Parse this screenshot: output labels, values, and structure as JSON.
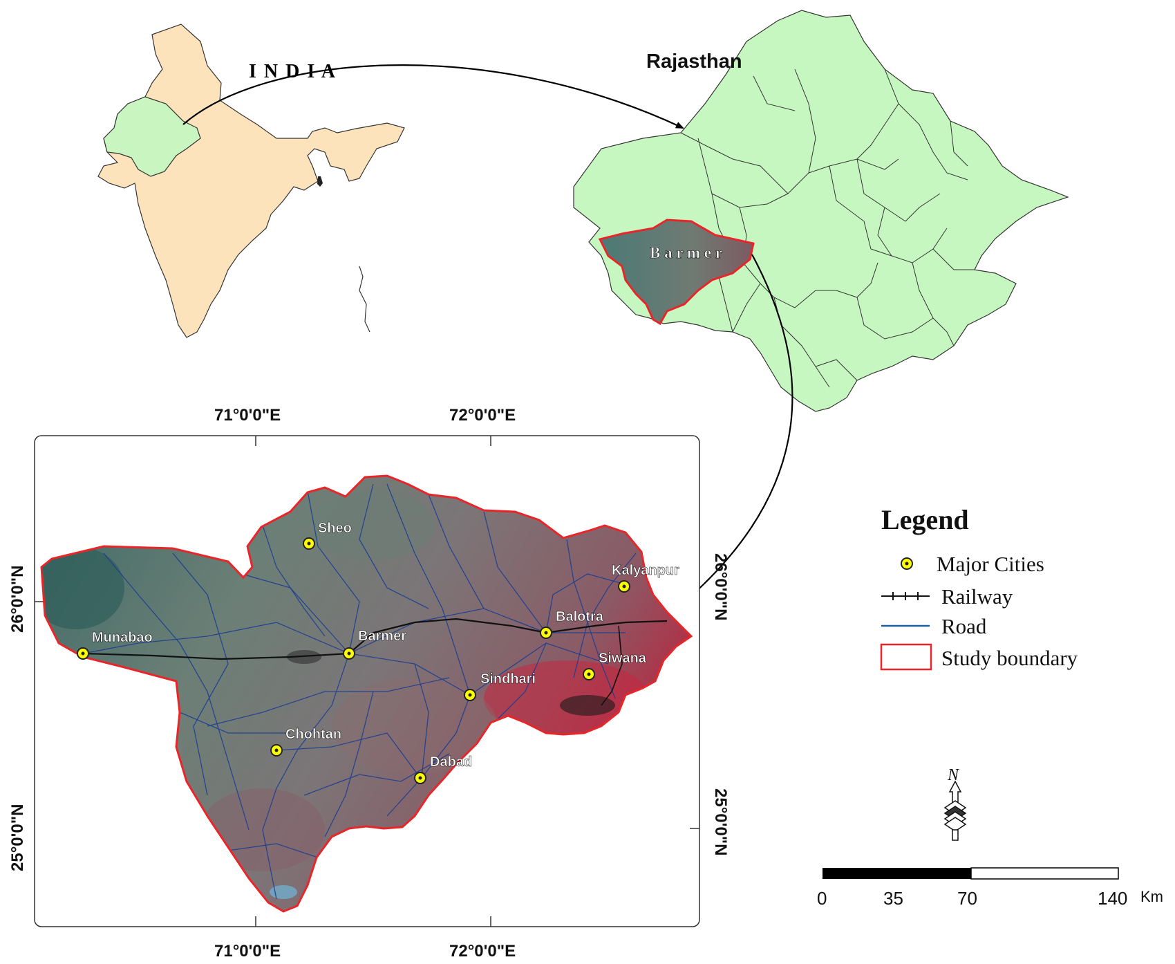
{
  "india": {
    "label": "I N D I A",
    "fill": "#fde3bb",
    "highlight_fill": "#c8f5c0"
  },
  "rajasthan": {
    "label": "Rajasthan",
    "fill": "#c6f7c0",
    "district_label": "B a r m e r"
  },
  "study_map": {
    "top_lon_labels": [
      "71°0'0\"E",
      "72°0'0\"E"
    ],
    "bottom_lon_labels": [
      "71°0'0\"E",
      "72°0'0\"E"
    ],
    "left_lat_labels": [
      "26°0'0\"N",
      "25°0'0\"N"
    ],
    "right_lat_labels": [
      "26°0'0\"N",
      "25°0'0\"N"
    ],
    "cities": [
      {
        "name": "Sheo"
      },
      {
        "name": "Kalyanpur"
      },
      {
        "name": "Balotra"
      },
      {
        "name": "Munabao"
      },
      {
        "name": "Barmer"
      },
      {
        "name": "Siwana"
      },
      {
        "name": "Sindhari"
      },
      {
        "name": "Chohtan"
      },
      {
        "name": "Dabad"
      }
    ],
    "boundary_color": "#e8262a",
    "road_color": "#1f3f8f",
    "city_marker_color": "#ffff00"
  },
  "legend": {
    "title": "Legend",
    "items": [
      {
        "label": "Major Cities",
        "symbol": "city-marker"
      },
      {
        "label": "Railway",
        "symbol": "railway-line"
      },
      {
        "label": "Road",
        "symbol": "road-line"
      },
      {
        "label": "Study boundary",
        "symbol": "boundary-box"
      }
    ]
  },
  "north_arrow": {
    "label": "N"
  },
  "scale_bar": {
    "ticks": [
      "0",
      "35",
      "70",
      "140"
    ],
    "unit": "Km"
  }
}
